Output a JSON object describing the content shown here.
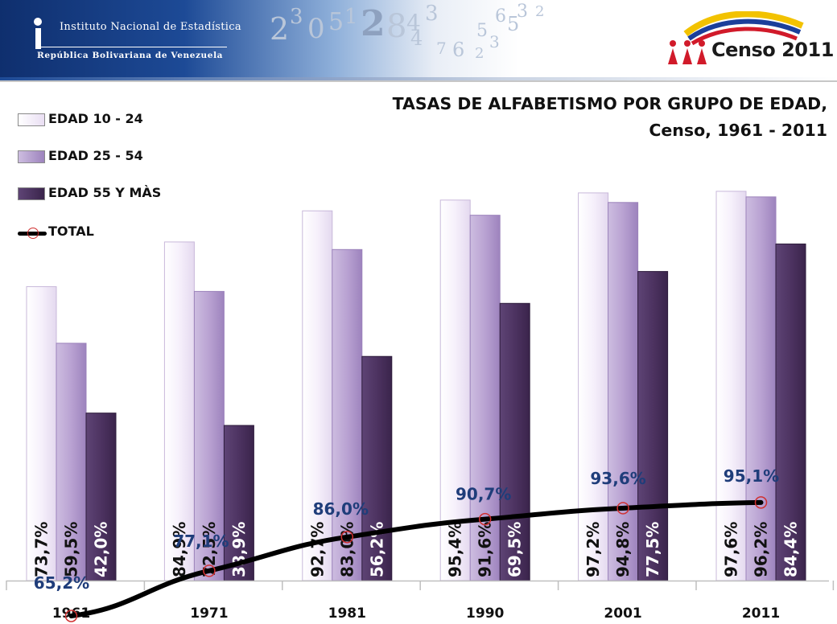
{
  "header": {
    "institute_line1": "Instituto Nacional de Estadística",
    "institute_line2": "República Bolivariana de Venezuela",
    "censo_logo_text": "Censo 2011",
    "digits": [
      "2",
      "3",
      "0",
      "5",
      "1",
      "2",
      "8",
      "4",
      "3",
      "4",
      "7",
      "6",
      "5",
      "3",
      "6",
      "5",
      "3",
      "2",
      "2"
    ]
  },
  "title": {
    "line1": "TASAS DE ALFABETISMO POR GRUPO DE EDAD,",
    "line2": "Censo, 1961 - 2011"
  },
  "colors": {
    "edad_10_24": "#f3ecf9",
    "edad_25_54": "#b9a2d2",
    "edad_55": "#4d3361",
    "total_line": "#000000",
    "total_marker": "#d03030",
    "total_label": "#1f3d7a"
  },
  "chart_data": {
    "type": "bar",
    "categories": [
      "1961",
      "1971",
      "1981",
      "1990",
      "2001",
      "2011"
    ],
    "series": [
      {
        "name": "EDAD 10 - 24",
        "values": [
          73.7,
          84.9,
          92.7,
          95.4,
          97.2,
          97.6
        ],
        "labels": [
          "73,7%",
          "84,9%",
          "92,7%",
          "95,4%",
          "97,2%",
          "97,6%"
        ]
      },
      {
        "name": "EDAD 25 - 54",
        "values": [
          59.5,
          72.5,
          83.0,
          91.6,
          94.8,
          96.2
        ],
        "labels": [
          "59,5%",
          "72,5%",
          "83,0%",
          "91,6%",
          "94,8%",
          "96,2%"
        ]
      },
      {
        "name": "EDAD 55 Y MÀS",
        "values": [
          42.0,
          38.9,
          56.2,
          69.5,
          77.5,
          84.4
        ],
        "labels": [
          "42,0%",
          "38,9%",
          "56,2%",
          "69,5%",
          "77,5%",
          "84,4%"
        ]
      },
      {
        "name": "TOTAL",
        "type": "line",
        "values": [
          65.2,
          77.1,
          86.0,
          90.7,
          93.6,
          95.1
        ],
        "labels": [
          "65,2%",
          "77,1%",
          "86,0%",
          "90,7%",
          "93,6%",
          "95,1%"
        ]
      }
    ],
    "title": "TASAS DE ALFABETISMO POR GRUPO DE EDAD, Censo, 1961 - 2011",
    "legend_position": "top-left",
    "grid": false
  }
}
